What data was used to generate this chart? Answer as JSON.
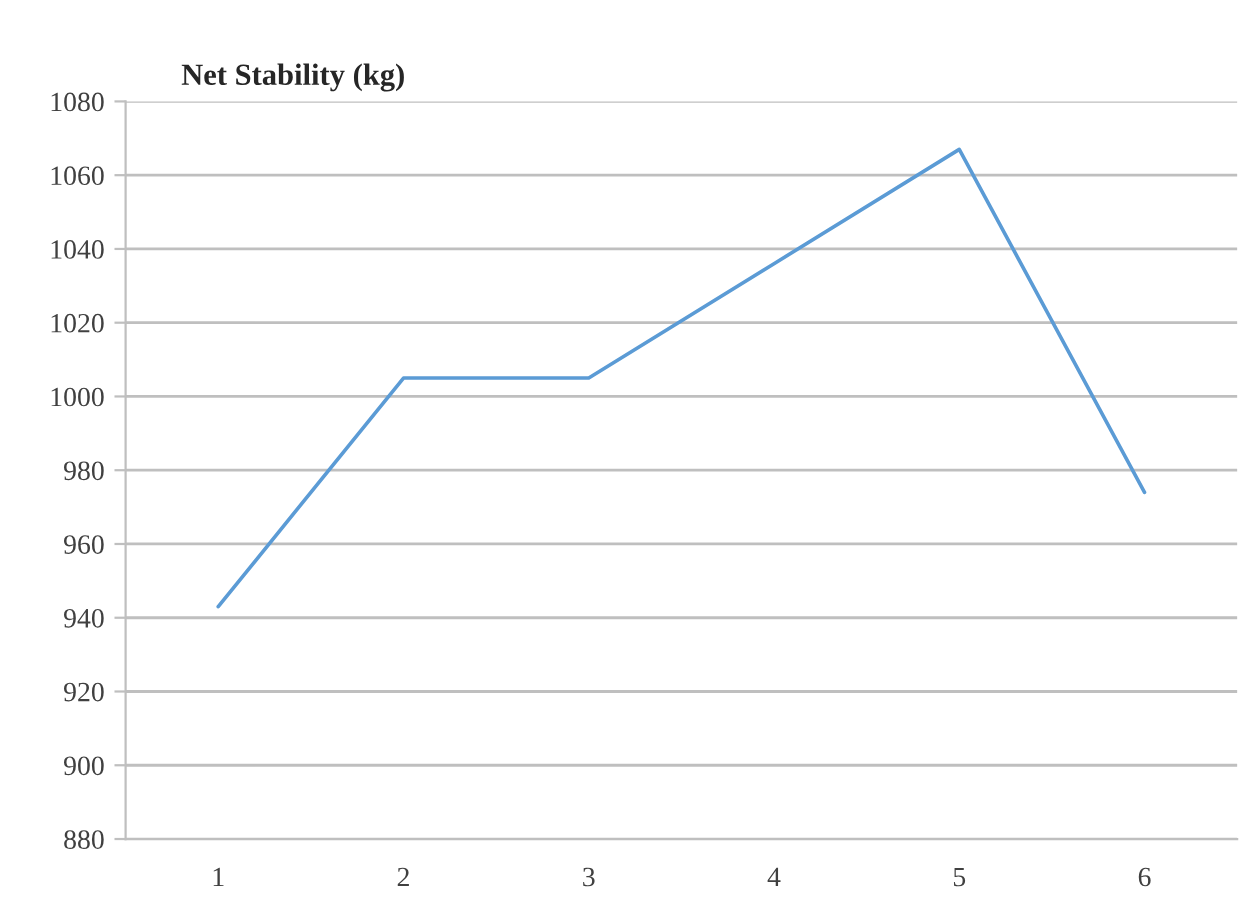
{
  "chart_data": {
    "type": "line",
    "title": "Net Stability (kg)",
    "categories": [
      "1",
      "2",
      "3",
      "4",
      "5",
      "6"
    ],
    "series": [
      {
        "color": "#5b9bd5",
        "values": [
          943,
          1005,
          1005,
          1036,
          1067,
          974
        ]
      }
    ],
    "ylim": [
      880,
      1080
    ],
    "yticks": [
      880,
      900,
      920,
      940,
      960,
      980,
      1000,
      1020,
      1040,
      1060,
      1080
    ],
    "grid": "y",
    "legend": false,
    "marker": "none",
    "line_style": "solid"
  }
}
